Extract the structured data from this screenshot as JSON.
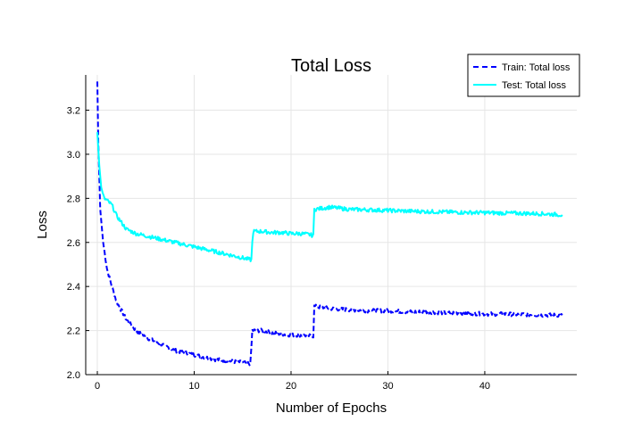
{
  "chart_data": {
    "type": "line",
    "title": "Total Loss",
    "xlabel": "Number of Epochs",
    "ylabel": "Loss",
    "xlim": [
      -1.2,
      49.5
    ],
    "ylim": [
      2.0,
      3.36
    ],
    "xticks": [
      0,
      10,
      20,
      30,
      40
    ],
    "yticks": [
      2.0,
      2.2,
      2.4,
      2.6,
      2.8,
      3.0,
      3.2
    ],
    "xtick_labels": [
      "0",
      "10",
      "20",
      "30",
      "40"
    ],
    "ytick_labels": [
      "2.0",
      "2.2",
      "2.4",
      "2.6",
      "2.8",
      "3.0",
      "3.2"
    ],
    "grid": true,
    "legend_position": "top-right",
    "series": [
      {
        "name": "Train: Total loss",
        "color": "#0000ff",
        "style": "dashed",
        "points": [
          [
            0,
            3.33
          ],
          [
            0.1,
            3.05
          ],
          [
            0.3,
            2.75
          ],
          [
            0.6,
            2.6
          ],
          [
            1,
            2.48
          ],
          [
            1.5,
            2.4
          ],
          [
            2,
            2.33
          ],
          [
            3,
            2.25
          ],
          [
            4,
            2.2
          ],
          [
            5,
            2.17
          ],
          [
            6,
            2.15
          ],
          [
            7,
            2.13
          ],
          [
            8,
            2.11
          ],
          [
            9,
            2.1
          ],
          [
            10,
            2.09
          ],
          [
            11,
            2.08
          ],
          [
            12,
            2.07
          ],
          [
            13,
            2.065
          ],
          [
            14,
            2.06
          ],
          [
            15,
            2.055
          ],
          [
            15.8,
            2.05
          ],
          [
            15.9,
            2.12
          ],
          [
            16,
            2.2
          ],
          [
            17,
            2.2
          ],
          [
            18,
            2.19
          ],
          [
            19,
            2.185
          ],
          [
            20,
            2.18
          ],
          [
            21,
            2.18
          ],
          [
            22,
            2.175
          ],
          [
            22.3,
            2.175
          ],
          [
            22.4,
            2.31
          ],
          [
            24,
            2.3
          ],
          [
            26,
            2.295
          ],
          [
            28,
            2.29
          ],
          [
            30,
            2.29
          ],
          [
            32,
            2.285
          ],
          [
            34,
            2.285
          ],
          [
            36,
            2.28
          ],
          [
            38,
            2.28
          ],
          [
            40,
            2.275
          ],
          [
            42,
            2.275
          ],
          [
            44,
            2.273
          ],
          [
            46,
            2.27
          ],
          [
            48,
            2.27
          ]
        ]
      },
      {
        "name": "Test: Total loss",
        "color": "#00ffff",
        "style": "solid",
        "points": [
          [
            0,
            3.1
          ],
          [
            0.2,
            2.95
          ],
          [
            0.4,
            2.85
          ],
          [
            0.7,
            2.8
          ],
          [
            1,
            2.79
          ],
          [
            1.5,
            2.77
          ],
          [
            2,
            2.72
          ],
          [
            3,
            2.66
          ],
          [
            4,
            2.64
          ],
          [
            5,
            2.63
          ],
          [
            6,
            2.62
          ],
          [
            7,
            2.61
          ],
          [
            8,
            2.6
          ],
          [
            9,
            2.59
          ],
          [
            10,
            2.58
          ],
          [
            11,
            2.57
          ],
          [
            12,
            2.56
          ],
          [
            13,
            2.55
          ],
          [
            14,
            2.54
          ],
          [
            15,
            2.53
          ],
          [
            15.9,
            2.52
          ],
          [
            16,
            2.6
          ],
          [
            16.1,
            2.65
          ],
          [
            17,
            2.65
          ],
          [
            18,
            2.645
          ],
          [
            19,
            2.645
          ],
          [
            20,
            2.64
          ],
          [
            21,
            2.64
          ],
          [
            22,
            2.635
          ],
          [
            22.3,
            2.63
          ],
          [
            22.4,
            2.75
          ],
          [
            24,
            2.76
          ],
          [
            26,
            2.75
          ],
          [
            28,
            2.748
          ],
          [
            30,
            2.745
          ],
          [
            32,
            2.742
          ],
          [
            34,
            2.74
          ],
          [
            36,
            2.738
          ],
          [
            38,
            2.736
          ],
          [
            40,
            2.735
          ],
          [
            42,
            2.733
          ],
          [
            44,
            2.732
          ],
          [
            46,
            2.73
          ],
          [
            48,
            2.725
          ]
        ]
      }
    ]
  }
}
